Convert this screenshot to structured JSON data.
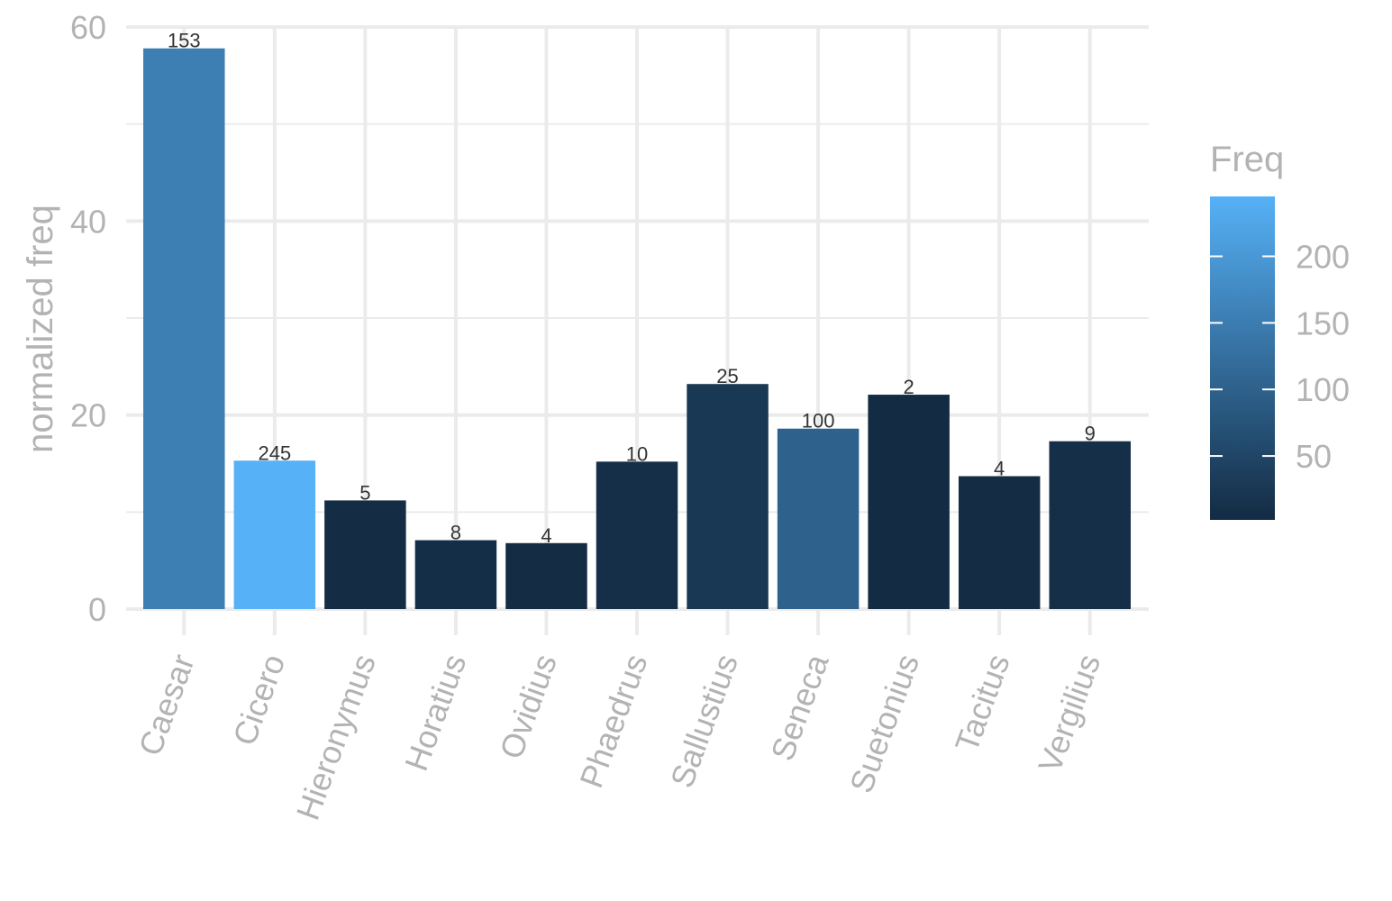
{
  "chart_data": {
    "type": "bar",
    "xlabel": "",
    "ylabel": "normalized freq",
    "ylim": [
      0,
      60
    ],
    "yticks": [
      0,
      20,
      40,
      60
    ],
    "categories": [
      "Caesar",
      "Cicero",
      "Hieronymus",
      "Horatius",
      "Ovidius",
      "Phaedrus",
      "Sallustius",
      "Seneca",
      "Suetonius",
      "Tacitus",
      "Vergilius"
    ],
    "values": [
      57.8,
      15.3,
      11.2,
      7.1,
      6.8,
      15.2,
      23.2,
      18.6,
      22.1,
      13.7,
      17.3
    ],
    "freq": [
      153,
      245,
      5,
      8,
      4,
      10,
      25,
      100,
      2,
      4,
      9
    ],
    "grid": true,
    "legend": {
      "title": "Freq",
      "position": "right",
      "ticks": [
        50,
        100,
        150,
        200
      ],
      "range": [
        2,
        245
      ],
      "low_color": "#132B43",
      "high_color": "#56B1F7"
    }
  }
}
